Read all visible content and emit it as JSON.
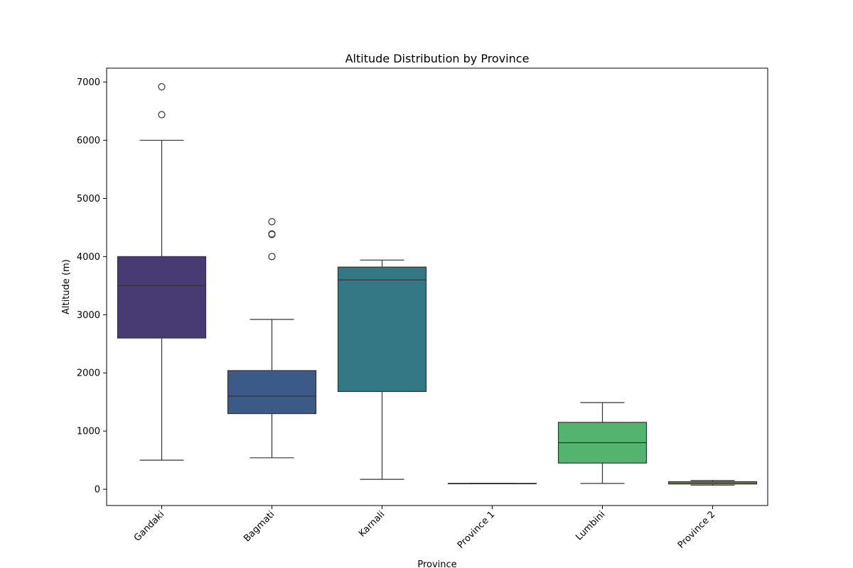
{
  "chart_data": {
    "type": "box",
    "title": "Altitude Distribution by Province",
    "xlabel": "Province",
    "ylabel": "Altitude (m)",
    "ylim": [
      -280,
      7240
    ],
    "yticks": [
      0,
      1000,
      2000,
      3000,
      4000,
      5000,
      6000,
      7000
    ],
    "grid": false,
    "categories": [
      "Gandaki",
      "Bagmati",
      "Karnali",
      "Province 1",
      "Lumbini",
      "Province 2"
    ],
    "boxes": [
      {
        "category": "Gandaki",
        "color": "#483a73",
        "whisker_low": 500,
        "q1": 2600,
        "median": 3500,
        "q3": 4000,
        "whisker_high": 6000,
        "outliers": [
          6440,
          6920
        ]
      },
      {
        "category": "Bagmati",
        "color": "#3c5a87",
        "whisker_low": 540,
        "q1": 1300,
        "median": 1600,
        "q3": 2040,
        "whisker_high": 2920,
        "outliers": [
          4000,
          4380,
          4390,
          4600
        ]
      },
      {
        "category": "Karnali",
        "color": "#337884",
        "whisker_low": 170,
        "q1": 1680,
        "median": 3600,
        "q3": 3820,
        "whisker_high": 3940,
        "outliers": []
      },
      {
        "category": "Province 1",
        "color": "#2a8c7c",
        "whisker_low": 100,
        "q1": 100,
        "median": 100,
        "q3": 100,
        "whisker_high": 100,
        "outliers": []
      },
      {
        "category": "Lumbini",
        "color": "#52b46e",
        "whisker_low": 100,
        "q1": 450,
        "median": 800,
        "q3": 1150,
        "whisker_high": 1490,
        "outliers": []
      },
      {
        "category": "Province 2",
        "color": "#9ac43a",
        "whisker_low": 70,
        "q1": 90,
        "median": 110,
        "q3": 130,
        "whisker_high": 150,
        "outliers": []
      }
    ]
  }
}
